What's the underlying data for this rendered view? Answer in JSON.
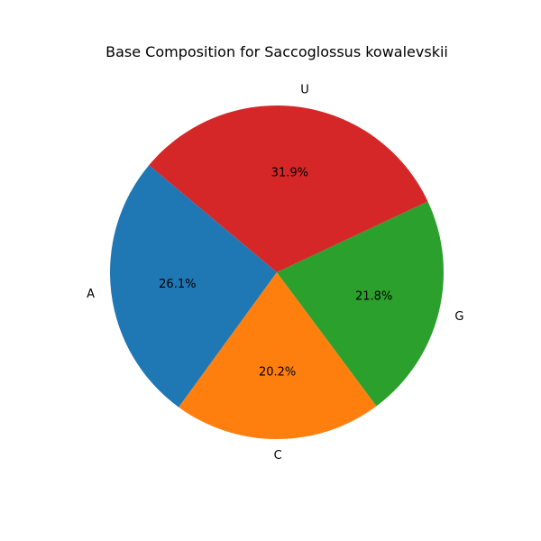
{
  "chart_data": {
    "type": "pie",
    "title": "Base Composition for Saccoglossus kowalevskii",
    "categories": [
      "A",
      "C",
      "G",
      "U"
    ],
    "values": [
      26.1,
      20.2,
      21.8,
      31.9
    ],
    "value_labels": [
      "26.1%",
      "20.2%",
      "21.8%",
      "31.9%"
    ],
    "colors": [
      "#1f77b4",
      "#ff7f0e",
      "#2ca02c",
      "#d62728"
    ],
    "start_angle_deg": 140,
    "direction": "counterclockwise"
  }
}
